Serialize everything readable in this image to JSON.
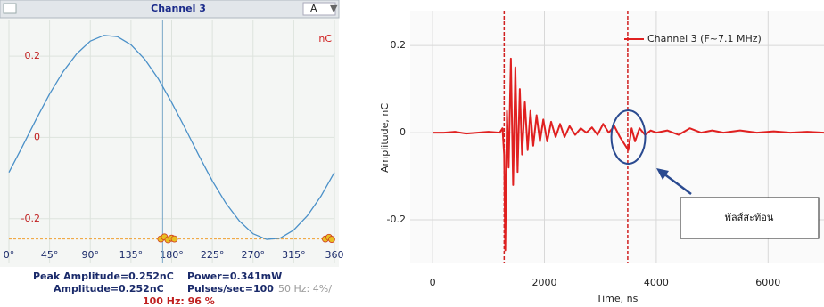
{
  "chart_data": [
    {
      "type": "line",
      "title": "Channel 3",
      "unit_label": "nC",
      "selector": "A",
      "color": "#4a90c8",
      "x": [
        0,
        15,
        30,
        45,
        60,
        75,
        90,
        105,
        120,
        135,
        150,
        165,
        180,
        195,
        210,
        225,
        240,
        255,
        270,
        285,
        300,
        315,
        330,
        345,
        360
      ],
      "values": [
        -0.086,
        -0.022,
        0.044,
        0.107,
        0.162,
        0.206,
        0.237,
        0.251,
        0.248,
        0.228,
        0.193,
        0.145,
        0.086,
        0.022,
        -0.044,
        -0.107,
        -0.162,
        -0.206,
        -0.237,
        -0.251,
        -0.248,
        -0.228,
        -0.193,
        -0.145,
        -0.086
      ],
      "points": {
        "color": "#e8c020",
        "x": [
          168,
          172,
          176,
          180,
          183,
          350,
          354,
          357
        ],
        "y": [
          -0.25,
          -0.245,
          -0.252,
          -0.248,
          -0.25,
          -0.25,
          -0.246,
          -0.251
        ]
      },
      "threshold": -0.25,
      "threshold_color": "#f0a030",
      "cursor_x": 170,
      "xlim": [
        0,
        360
      ],
      "ylim": [
        -0.31,
        0.29
      ],
      "xticks": [
        {
          "value": 0,
          "label": "0°"
        },
        {
          "value": 45,
          "label": "45°"
        },
        {
          "value": 90,
          "label": "90°"
        },
        {
          "value": 135,
          "label": "135°"
        },
        {
          "value": 180,
          "label": "180°"
        },
        {
          "value": 225,
          "label": "225°"
        },
        {
          "value": 270,
          "label": "270°"
        },
        {
          "value": 315,
          "label": "315°"
        },
        {
          "value": 360,
          "label": "360"
        }
      ],
      "yticks": [
        -0.2,
        0,
        0.2
      ],
      "grid": true
    },
    {
      "type": "line",
      "xlabel": "Time, ns",
      "ylabel": "Amplitude, nC",
      "x": [
        0,
        200,
        400,
        600,
        800,
        1000,
        1200,
        1250,
        1280,
        1300,
        1330,
        1360,
        1400,
        1440,
        1480,
        1520,
        1560,
        1600,
        1650,
        1700,
        1750,
        1800,
        1860,
        1920,
        1980,
        2050,
        2120,
        2200,
        2280,
        2360,
        2450,
        2550,
        2650,
        2750,
        2850,
        2950,
        3050,
        3150,
        3250,
        3350,
        3450,
        3500,
        3560,
        3620,
        3700,
        3800,
        3900,
        4000,
        4200,
        4400,
        4600,
        4800,
        5000,
        5200,
        5500,
        5800,
        6100,
        6400,
        6700,
        7000
      ],
      "series": [
        {
          "name": "Channel 3 (F~7.1 MHz)",
          "color": "#e02020",
          "values": [
            0,
            0,
            0.002,
            -0.002,
            0,
            0.002,
            0,
            0.01,
            -0.05,
            -0.27,
            0.05,
            -0.08,
            0.17,
            -0.12,
            0.15,
            -0.09,
            0.1,
            -0.05,
            0.07,
            -0.04,
            0.05,
            -0.03,
            0.04,
            -0.02,
            0.03,
            -0.02,
            0.025,
            -0.01,
            0.02,
            -0.01,
            0.015,
            -0.005,
            0.01,
            0,
            0.012,
            -0.005,
            0.02,
            0,
            0.015,
            -0.01,
            -0.03,
            -0.04,
            0.01,
            -0.02,
            0.01,
            -0.005,
            0.005,
            0,
            0.005,
            -0.005,
            0.01,
            0,
            0.005,
            0,
            0.005,
            0,
            0.003,
            0,
            0.002,
            0
          ]
        }
      ],
      "markers_x": [
        1280,
        3490
      ],
      "marker_color": "#d02020",
      "highlight": {
        "x": 3500,
        "y": -0.01,
        "color": "#2a4a90"
      },
      "annotation": "พัลส์สะท้อน",
      "xlim": [
        -400,
        7000
      ],
      "ylim": [
        -0.3,
        0.28
      ],
      "xticks": [
        0,
        2000,
        4000,
        6000
      ],
      "yticks": [
        -0.2,
        0,
        0.2
      ],
      "grid": true,
      "legend": "top-right"
    }
  ],
  "status": {
    "peak": "Peak Amplitude=0.252nC",
    "power": "Power=0.341mW",
    "amplitude": "Amplitude=0.252nC",
    "pulses": "Pulses/sec=100",
    "hz50": "50 Hz: 4%/",
    "hz100": "100 Hz: 96 %"
  }
}
